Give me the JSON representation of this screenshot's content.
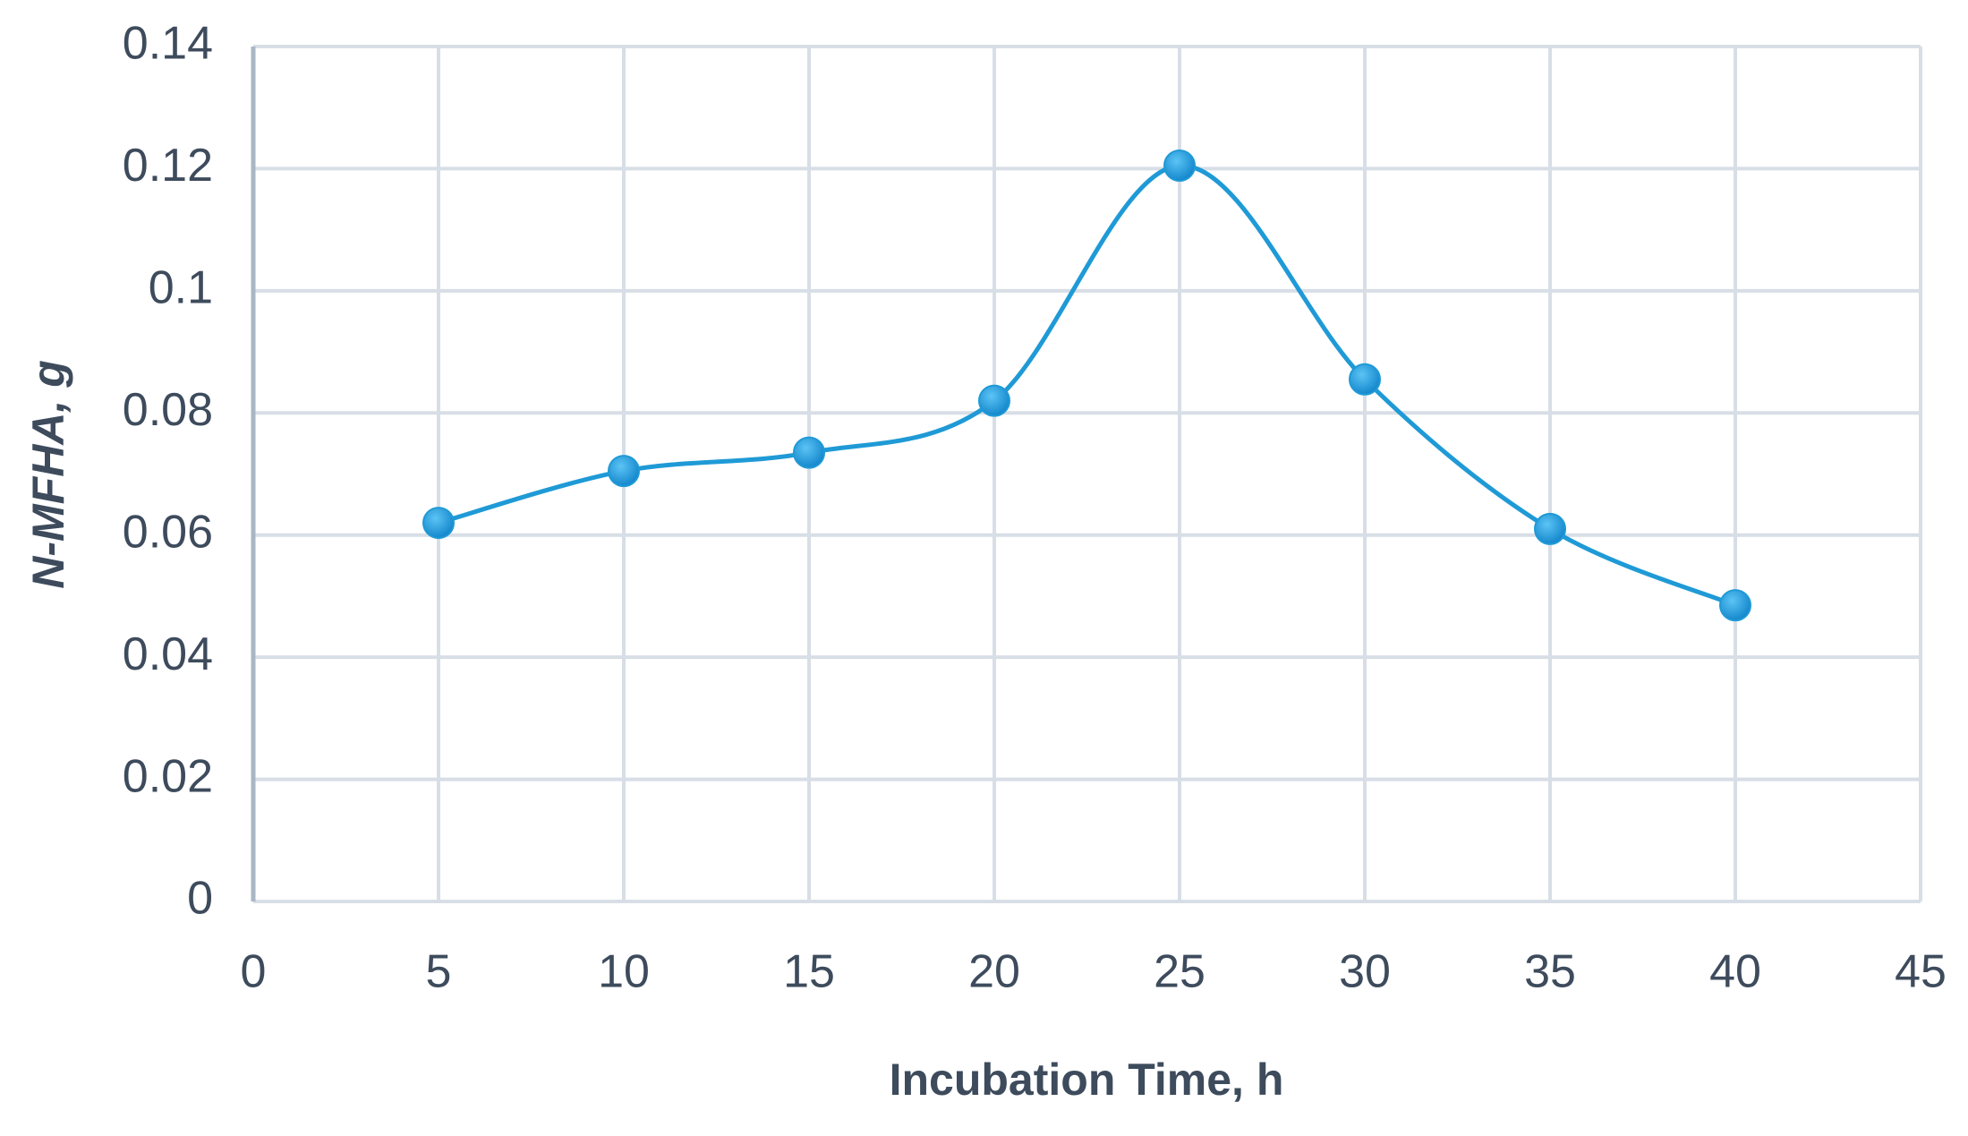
{
  "chart_data": {
    "type": "line",
    "xlabel": "Incubation Time, h",
    "ylabel": "N-MFHA, g",
    "x": [
      5,
      10,
      15,
      20,
      25,
      30,
      35,
      40
    ],
    "series": [
      {
        "name": "N-MFHA",
        "color": "#1f9ad6",
        "values": [
          0.062,
          0.0705,
          0.0735,
          0.082,
          0.1205,
          0.0855,
          0.061,
          0.0485
        ]
      }
    ],
    "xlim": [
      0,
      45
    ],
    "xticks": [
      0,
      5,
      10,
      15,
      20,
      25,
      30,
      35,
      40,
      45
    ],
    "ylim": [
      0,
      0.14
    ],
    "yticks": [
      0,
      0.02,
      0.04,
      0.06,
      0.08,
      0.1,
      0.12,
      0.14
    ],
    "grid": true,
    "smooth": true
  }
}
